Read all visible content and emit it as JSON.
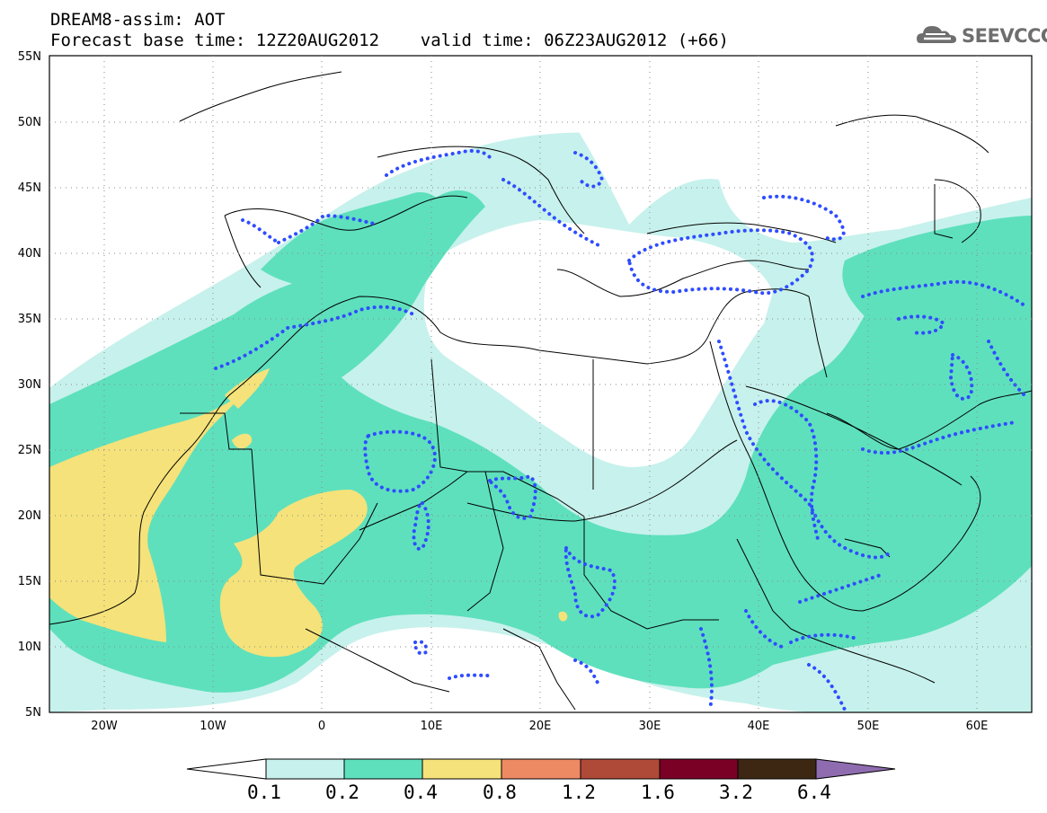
{
  "title": {
    "line1": "DREAM8-assim: AOT",
    "line2": "Forecast base time: 12Z20AUG2012    valid time: 06Z23AUG2012 (+66)"
  },
  "logo": {
    "text": "SEEVCCC",
    "icon": "cloud-icon"
  },
  "map": {
    "lat_labels": [
      "55N",
      "50N",
      "45N",
      "40N",
      "35N",
      "30N",
      "25N",
      "20N",
      "15N",
      "10N",
      "5N"
    ],
    "lon_labels": [
      "20W",
      "10W",
      "0",
      "10E",
      "20E",
      "30E",
      "40E",
      "50E",
      "60E"
    ],
    "colors": {
      "c1": "#c7f1ec",
      "c2": "#5ee0bd",
      "c3": "#f5e27a",
      "c4": "#ee8a63",
      "c5": "#b04a38",
      "c6": "#7a0026",
      "c7": "#3d2713",
      "c8": "#8f6cb0",
      "contour": "#2f4cff"
    }
  },
  "colorbar": {
    "labels": [
      "0.1",
      "0.2",
      "0.4",
      "0.8",
      "1.2",
      "1.6",
      "3.2",
      "6.4"
    ]
  }
}
